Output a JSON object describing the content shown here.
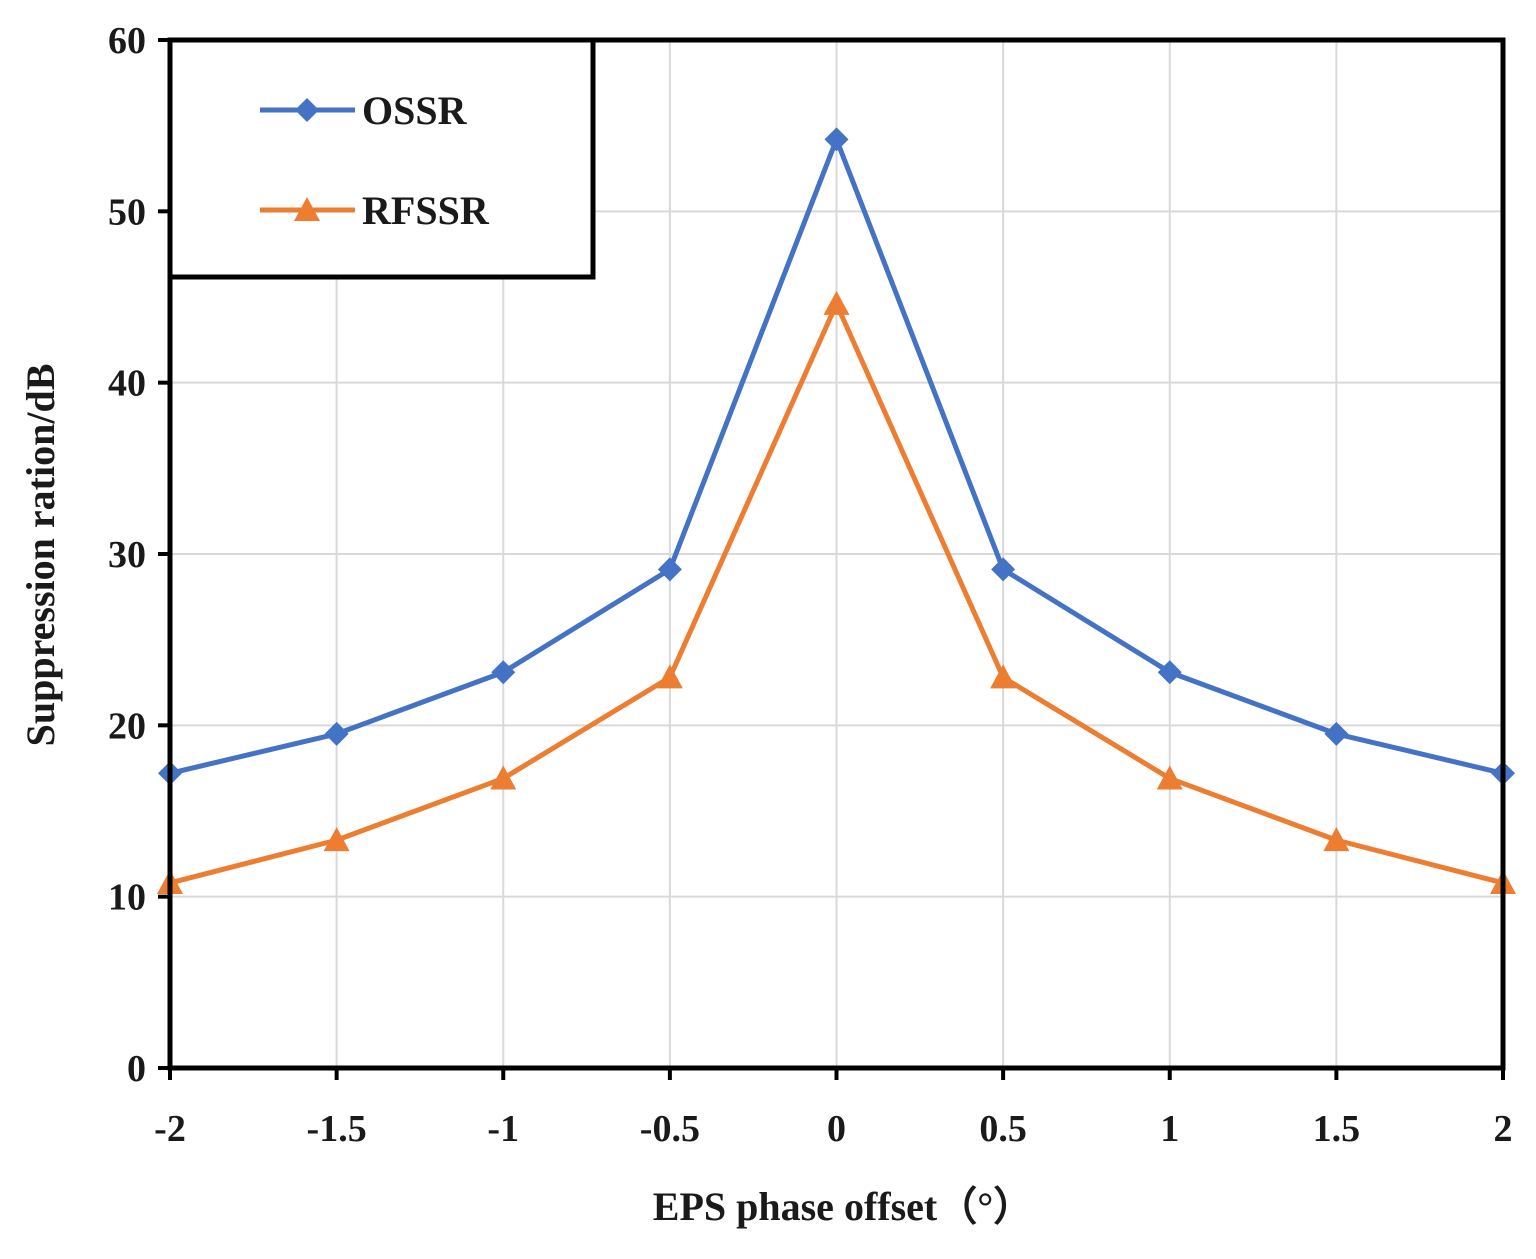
{
  "chart_data": {
    "type": "line",
    "title": "",
    "xlabel": "EPS phase offset（°）",
    "ylabel": "Suppression ration/dB",
    "x": [
      -2,
      -1.5,
      -1,
      -0.5,
      0,
      0.5,
      1,
      1.5,
      2
    ],
    "x_tick_labels": [
      "-2",
      "-1.5",
      "-1",
      "-0.5",
      "0",
      "0.5",
      "1",
      "1.5",
      "2"
    ],
    "xlim": [
      -2,
      2
    ],
    "ylim": [
      0,
      60
    ],
    "y_ticks": [
      0,
      10,
      20,
      30,
      40,
      50,
      60
    ],
    "y_tick_labels": [
      "0",
      "10",
      "20",
      "30",
      "40",
      "50",
      "60"
    ],
    "grid": true,
    "legend_position": "top-left",
    "series": [
      {
        "name": "OSSR",
        "marker": "diamond",
        "color": "#4472C4",
        "values": [
          17.2,
          19.5,
          23.1,
          29.1,
          54.2,
          29.1,
          23.1,
          19.5,
          17.2
        ]
      },
      {
        "name": "RFSSR",
        "marker": "triangle",
        "color": "#ED7D31",
        "values": [
          10.8,
          13.3,
          16.9,
          22.8,
          44.6,
          22.8,
          16.9,
          13.3,
          10.8
        ]
      }
    ]
  }
}
